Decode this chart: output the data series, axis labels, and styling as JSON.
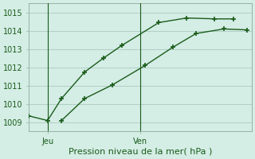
{
  "xlabel": "Pression niveau de la mer( hPa )",
  "bg_color": "#d4ede5",
  "grid_color": "#b0cfc5",
  "line_color": "#1a5c1a",
  "spine_color": "#8aaa98",
  "ylim": [
    1008.5,
    1015.5
  ],
  "xlim": [
    0,
    24
  ],
  "yticks": [
    1009,
    1010,
    1011,
    1012,
    1013,
    1014,
    1015
  ],
  "xtick_positions": [
    2,
    12
  ],
  "xtick_labels": [
    "Jeu",
    "Ven"
  ],
  "vline_positions": [
    2,
    12
  ],
  "line1_x": [
    0,
    2,
    3.5,
    6,
    8,
    10,
    14,
    17,
    20,
    22
  ],
  "line1_y": [
    1009.35,
    1009.1,
    1010.3,
    1011.75,
    1012.5,
    1013.2,
    1014.45,
    1014.7,
    1014.65,
    1014.65
  ],
  "line2_x": [
    3.5,
    6,
    9,
    12.5,
    15.5,
    18,
    21,
    23.5
  ],
  "line2_y": [
    1009.1,
    1010.3,
    1011.05,
    1012.1,
    1013.1,
    1013.85,
    1014.1,
    1014.05
  ],
  "marker_size": 3,
  "line_width": 1.0,
  "fontsize_tick": 7,
  "fontsize_xlabel": 8
}
